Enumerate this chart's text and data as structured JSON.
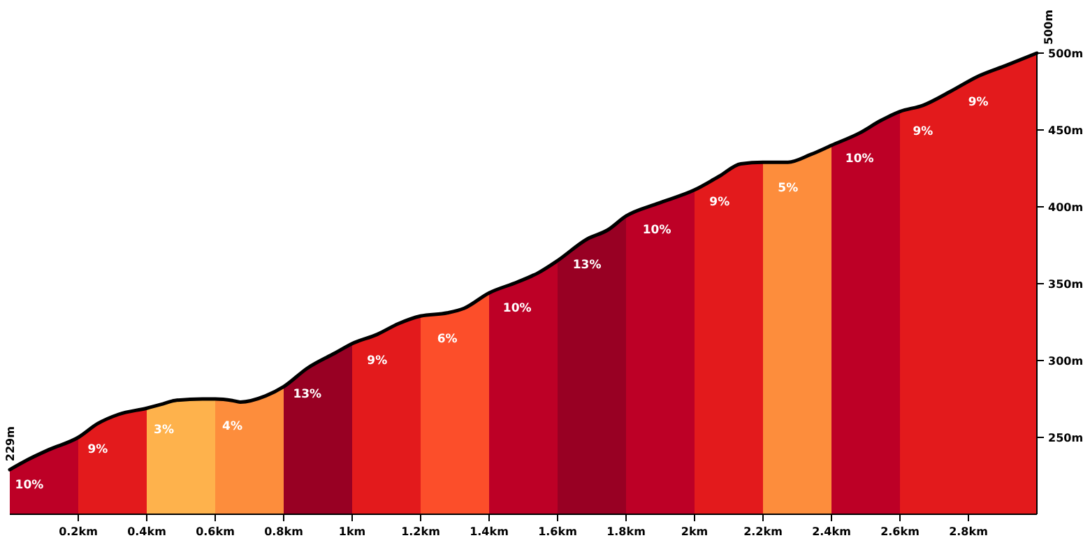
{
  "chart_data": {
    "type": "area",
    "xlim": [
      0,
      3
    ],
    "ylim": [
      200,
      500
    ],
    "xticks": [
      {
        "value": 0.2,
        "label": "0.2km"
      },
      {
        "value": 0.4,
        "label": "0.4km"
      },
      {
        "value": 0.6,
        "label": "0.6km"
      },
      {
        "value": 0.8,
        "label": "0.8km"
      },
      {
        "value": 1,
        "label": "1km"
      },
      {
        "value": 1.2,
        "label": "1.2km"
      },
      {
        "value": 1.4,
        "label": "1.4km"
      },
      {
        "value": 1.6,
        "label": "1.6km"
      },
      {
        "value": 1.8,
        "label": "1.8km"
      },
      {
        "value": 2,
        "label": "2km"
      },
      {
        "value": 2.2,
        "label": "2.2km"
      },
      {
        "value": 2.4,
        "label": "2.4km"
      },
      {
        "value": 2.6,
        "label": "2.6km"
      },
      {
        "value": 2.8,
        "label": "2.8km"
      }
    ],
    "yticks": [
      {
        "value": 250,
        "label": "250m"
      },
      {
        "value": 300,
        "label": "300m"
      },
      {
        "value": 350,
        "label": "350m"
      },
      {
        "value": 400,
        "label": "400m"
      },
      {
        "value": 450,
        "label": "450m"
      },
      {
        "value": 500,
        "label": "500m"
      }
    ],
    "series": [
      {
        "color": "#bd0026",
        "x": [
          0,
          0.057,
          0.114,
          0.2
        ],
        "values": [
          229,
          236,
          242,
          250
        ]
      },
      {
        "color": "#e31a1c",
        "x": [
          0.2,
          0.257,
          0.318,
          0.4
        ],
        "values": [
          250,
          259,
          265,
          269
        ]
      },
      {
        "color": "#feb24c",
        "x": [
          0.4,
          0.45,
          0.482,
          0.563,
          0.6
        ],
        "values": [
          269,
          272,
          274,
          275,
          275
        ]
      },
      {
        "color": "#fd8d3c",
        "x": [
          0.6,
          0.65,
          0.673,
          0.747,
          0.8
        ],
        "values": [
          275,
          274,
          273,
          277,
          283
        ]
      },
      {
        "color": "#980023",
        "x": [
          0.8,
          0.869,
          0.951,
          1
        ],
        "values": [
          283,
          295,
          305,
          311
        ]
      },
      {
        "color": "#e31a1c",
        "x": [
          1,
          1.073,
          1.135,
          1.2
        ],
        "values": [
          311,
          317,
          324,
          329
        ]
      },
      {
        "color": "#fc4e2a",
        "x": [
          1.2,
          1.278,
          1.327,
          1.4
        ],
        "values": [
          329,
          331,
          334,
          344
        ]
      },
      {
        "color": "#bd0026",
        "x": [
          1.4,
          1.482,
          1.543,
          1.6
        ],
        "values": [
          344,
          351,
          357,
          365
        ]
      },
      {
        "color": "#980023",
        "x": [
          1.6,
          1.686,
          1.747,
          1.8
        ],
        "values": [
          365,
          379,
          385,
          394
        ]
      },
      {
        "color": "#bd0026",
        "x": [
          1.8,
          1.89,
          2
        ],
        "values": [
          394,
          402,
          411
        ]
      },
      {
        "color": "#e31a1c",
        "x": [
          2,
          2.073,
          2.135,
          2.2
        ],
        "values": [
          411,
          420,
          428,
          429
        ]
      },
      {
        "color": "#fd8d3c",
        "x": [
          2.2,
          2.273,
          2.339,
          2.4
        ],
        "values": [
          429,
          429,
          434,
          440
        ]
      },
      {
        "color": "#bd0026",
        "x": [
          2.4,
          2.482,
          2.543,
          2.6
        ],
        "values": [
          440,
          448,
          456,
          462
        ]
      },
      {
        "color": "#e31a1c",
        "x": [
          2.6,
          2.667,
          2.747,
          2.829,
          2.91,
          3
        ],
        "values": [
          462,
          466,
          475,
          485,
          492,
          500
        ]
      },
      {
        "type": "line",
        "color": "#000000",
        "x": [
          0,
          0.057,
          0.114,
          0.2,
          0.257,
          0.318,
          0.4,
          0.45,
          0.482,
          0.563,
          0.6,
          0.65,
          0.673,
          0.747,
          0.8,
          0.869,
          0.951,
          1,
          1.073,
          1.135,
          1.2,
          1.278,
          1.327,
          1.4,
          1.482,
          1.543,
          1.6,
          1.686,
          1.747,
          1.8,
          1.89,
          2,
          2.073,
          2.135,
          2.2,
          2.273,
          2.339,
          2.4,
          2.482,
          2.543,
          2.6,
          2.667,
          2.747,
          2.829,
          2.91,
          3
        ],
        "values": [
          229,
          236,
          242,
          250,
          259,
          265,
          269,
          272,
          274,
          275,
          275,
          274,
          273,
          277,
          283,
          295,
          305,
          311,
          317,
          324,
          329,
          331,
          334,
          344,
          351,
          357,
          365,
          379,
          385,
          394,
          402,
          411,
          420,
          428,
          429,
          429,
          434,
          440,
          448,
          456,
          462,
          466,
          475,
          485,
          492,
          500
        ]
      }
    ],
    "annotations": [
      {
        "text": "229m",
        "x": 0,
        "y": 229
      },
      {
        "text": "500m",
        "x": 3,
        "y": 500
      },
      {
        "text": "10%",
        "x": 0.057,
        "y": 236
      },
      {
        "text": "9%",
        "x": 0.257,
        "y": 259
      },
      {
        "text": "3%",
        "x": 0.45,
        "y": 272
      },
      {
        "text": "4%",
        "x": 0.65,
        "y": 274
      },
      {
        "text": "13%",
        "x": 0.869,
        "y": 295
      },
      {
        "text": "9%",
        "x": 1.073,
        "y": 317
      },
      {
        "text": "6%",
        "x": 1.278,
        "y": 331
      },
      {
        "text": "10%",
        "x": 1.482,
        "y": 351
      },
      {
        "text": "13%",
        "x": 1.686,
        "y": 379
      },
      {
        "text": "10%",
        "x": 1.89,
        "y": 402
      },
      {
        "text": "9%",
        "x": 2.073,
        "y": 420
      },
      {
        "text": "5%",
        "x": 2.273,
        "y": 429
      },
      {
        "text": "10%",
        "x": 2.482,
        "y": 448
      },
      {
        "text": "9%",
        "x": 2.667,
        "y": 466
      },
      {
        "text": "9%",
        "x": 2.829,
        "y": 485
      }
    ]
  }
}
